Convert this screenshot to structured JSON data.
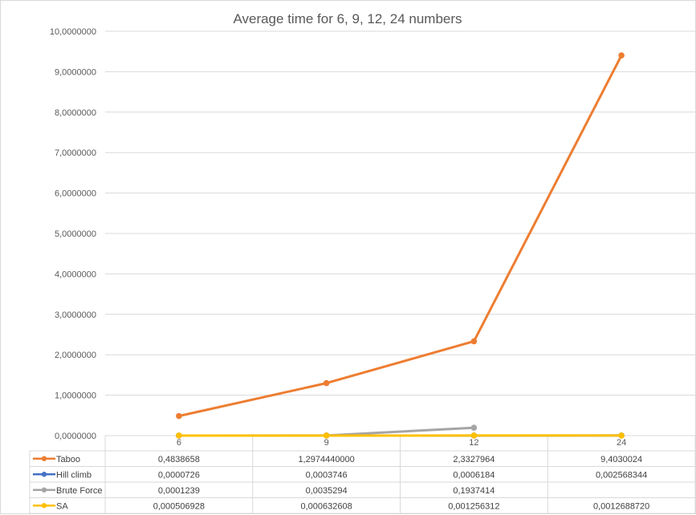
{
  "chart_data": {
    "type": "line",
    "title": "Average time for 6, 9, 12, 24 numbers",
    "categories": [
      "6",
      "9",
      "12",
      "24"
    ],
    "ylim": [
      0,
      10
    ],
    "y_ticks": [
      {
        "value": 0,
        "label": "0,0000000"
      },
      {
        "value": 1,
        "label": "1,0000000"
      },
      {
        "value": 2,
        "label": "2,0000000"
      },
      {
        "value": 3,
        "label": "3,0000000"
      },
      {
        "value": 4,
        "label": "4,0000000"
      },
      {
        "value": 5,
        "label": "5,0000000"
      },
      {
        "value": 6,
        "label": "6,0000000"
      },
      {
        "value": 7,
        "label": "7,0000000"
      },
      {
        "value": 8,
        "label": "8,0000000"
      },
      {
        "value": 9,
        "label": "9,0000000"
      },
      {
        "value": 10,
        "label": "10,0000000"
      }
    ],
    "grid": true,
    "legend": "data-table",
    "series": [
      {
        "name": "Taboo",
        "color": "#ed7d31",
        "values": [
          0.4838658,
          1.297444,
          2.3327964,
          9.4030024
        ],
        "labels": [
          "0,4838658",
          "1,2974440000",
          "2,3327964",
          "9,4030024"
        ]
      },
      {
        "name": "Hill climb",
        "color": "#4472c4",
        "values": [
          7.26e-05,
          0.0003746,
          0.0006184,
          0.002568344
        ],
        "labels": [
          "0,0000726",
          "0,0003746",
          "0,0006184",
          "0,002568344"
        ]
      },
      {
        "name": "Brute Force",
        "color": "#a5a5a5",
        "values": [
          0.0001239,
          0.0035294,
          0.1937414,
          null
        ],
        "labels": [
          "0,0001239",
          "0,0035294",
          "0,1937414",
          ""
        ]
      },
      {
        "name": "SA",
        "color": "#ffc000",
        "values": [
          0.000506928,
          0.000632608,
          0.001256312,
          0.001268872
        ],
        "labels": [
          "0,000506928",
          "0,000632608",
          "0,001256312",
          "0,0012688720"
        ]
      }
    ]
  }
}
